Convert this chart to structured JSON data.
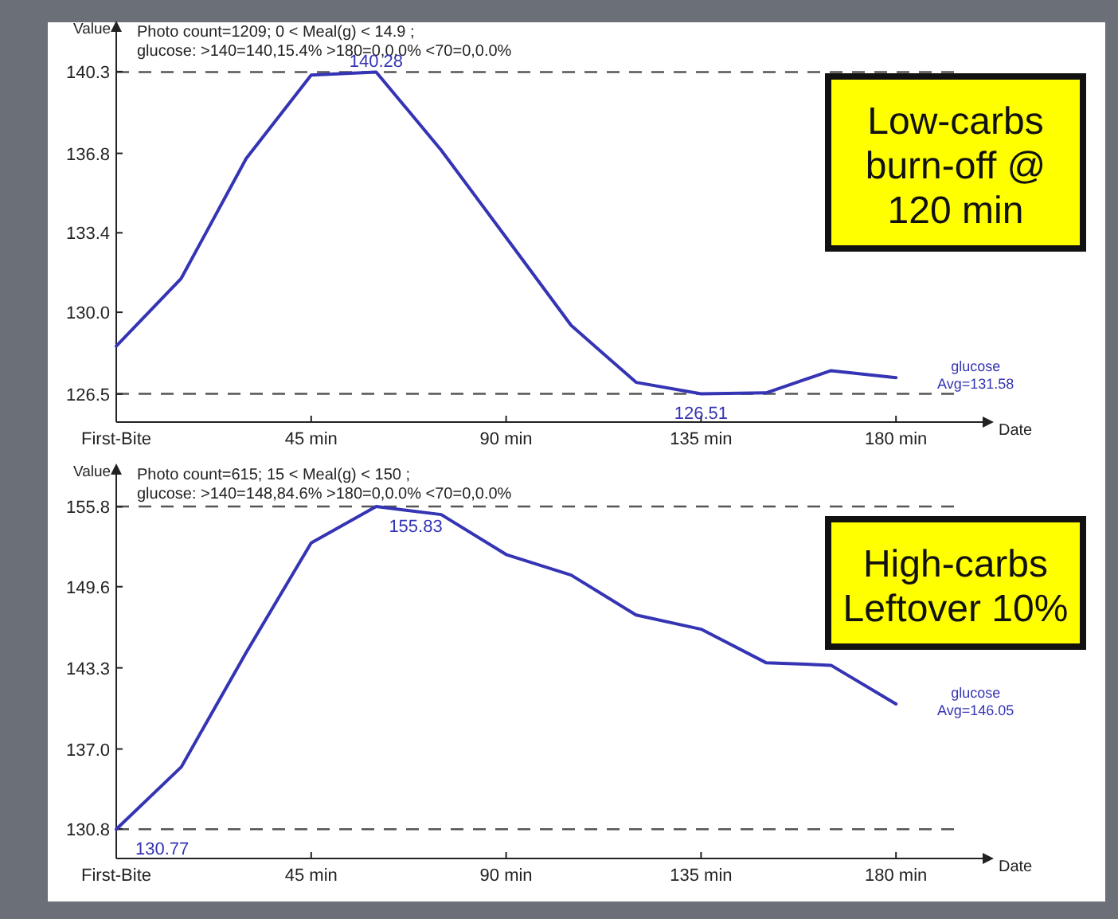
{
  "chart_data": [
    {
      "type": "line",
      "title": "Photo count=1209; 0 < Meal(g) < 14.9 ;",
      "subtitle": "glucose: >140=140,15.4% >180=0,0.0%  <70=0,0.0%",
      "xlabel": "Date",
      "ylabel": "Value",
      "x": [
        0,
        15,
        30,
        45,
        60,
        75,
        90,
        105,
        120,
        135,
        150,
        165,
        180
      ],
      "series": [
        {
          "name": "glucose",
          "color": "#3434b4",
          "values": [
            128.55,
            131.45,
            136.58,
            140.15,
            140.28,
            136.94,
            133.2,
            129.44,
            127.0,
            126.51,
            126.55,
            127.5,
            127.2
          ],
          "value_labels": [
            null,
            null,
            null,
            null,
            "140.28",
            null,
            null,
            null,
            null,
            "126.51",
            null,
            null,
            null
          ]
        }
      ],
      "xlim": [
        0,
        200
      ],
      "xticks": [
        {
          "value": 0,
          "label": "First-Bite"
        },
        {
          "value": 45,
          "label": "45 min"
        },
        {
          "value": 90,
          "label": "90 min"
        },
        {
          "value": 135,
          "label": "135 min"
        },
        {
          "value": 180,
          "label": "180 min"
        }
      ],
      "ylim": [
        125.3,
        142
      ],
      "yticks": [
        126.5,
        {
          "value": 130,
          "label": "130.0"
        },
        133.4,
        136.8,
        140.3
      ],
      "ref_lines": [
        {
          "axis": "y",
          "value": 140.28,
          "line_style": "dashed",
          "color": "#555555"
        },
        {
          "axis": "y",
          "value": 126.51,
          "line_style": "dashed",
          "color": "#555555"
        }
      ],
      "annotations": [
        "Low-carbs burn-off @ 120 min",
        "Avg=131.58"
      ],
      "grid": false,
      "marker": "none",
      "line_style": "solid"
    },
    {
      "type": "line",
      "title": "Photo count=615; 15 < Meal(g) < 150 ;",
      "subtitle": "glucose: >140=148,84.6% >180=0,0.0%  <70=0,0.0%",
      "xlabel": "Date",
      "ylabel": "Value",
      "x": [
        0,
        15,
        30,
        45,
        60,
        75,
        90,
        105,
        120,
        135,
        150,
        165,
        180
      ],
      "series": [
        {
          "name": "glucose",
          "color": "#3434b4",
          "values": [
            130.77,
            135.6,
            144.5,
            153.0,
            155.83,
            155.2,
            152.1,
            150.5,
            147.4,
            146.3,
            143.7,
            143.5,
            140.5
          ],
          "value_labels": [
            "130.77",
            null,
            null,
            null,
            "155.83",
            null,
            null,
            null,
            null,
            null,
            null,
            null,
            null
          ]
        }
      ],
      "xlim": [
        0,
        200
      ],
      "xticks": [
        {
          "value": 0,
          "label": "First-Bite"
        },
        {
          "value": 45,
          "label": "45 min"
        },
        {
          "value": 90,
          "label": "90 min"
        },
        {
          "value": 135,
          "label": "135 min"
        },
        {
          "value": 180,
          "label": "180 min"
        }
      ],
      "ylim": [
        128.5,
        158.3
      ],
      "yticks": [
        130.8,
        {
          "value": 137,
          "label": "137.0"
        },
        143.3,
        149.6,
        155.8
      ],
      "ref_lines": [
        {
          "axis": "y",
          "value": 155.83,
          "line_style": "dashed",
          "color": "#555555"
        },
        {
          "axis": "y",
          "value": 130.77,
          "line_style": "dashed",
          "color": "#555555"
        }
      ],
      "annotations": [
        "High-carbs Leftover 10%",
        "Avg=146.05"
      ],
      "grid": false,
      "marker": "none",
      "line_style": "solid"
    }
  ]
}
